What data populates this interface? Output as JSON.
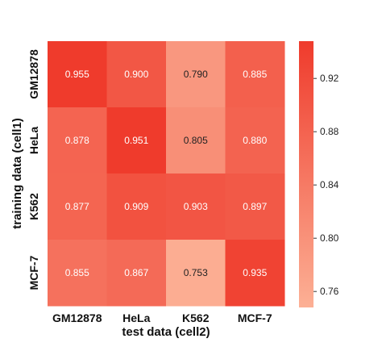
{
  "chart_data": {
    "type": "heatmap",
    "xlabel": "test data (cell2)",
    "ylabel": "training data (cell1)",
    "x_categories": [
      "GM12878",
      "HeLa",
      "K562",
      "MCF-7"
    ],
    "y_categories": [
      "GM12878",
      "HeLa",
      "K562",
      "MCF-7"
    ],
    "values": [
      [
        0.955,
        0.9,
        0.79,
        0.885
      ],
      [
        0.878,
        0.951,
        0.805,
        0.88
      ],
      [
        0.877,
        0.909,
        0.903,
        0.897
      ],
      [
        0.855,
        0.867,
        0.753,
        0.935
      ]
    ],
    "value_labels": [
      [
        "0.955",
        "0.900",
        "0.790",
        "0.885"
      ],
      [
        "0.878",
        "0.951",
        "0.805",
        "0.880"
      ],
      [
        "0.877",
        "0.909",
        "0.903",
        "0.897"
      ],
      [
        "0.855",
        "0.867",
        "0.753",
        "0.935"
      ]
    ],
    "colorbar": {
      "range": [
        0.748,
        0.948
      ],
      "ticks": [
        0.76,
        0.8,
        0.84,
        0.88,
        0.92
      ],
      "tick_labels": [
        "0.76",
        "0.80",
        "0.84",
        "0.88",
        "0.92"
      ],
      "color_low": "#fcb095",
      "color_high": "#ef3b2c"
    },
    "grid": false,
    "legend": "colorbar-right"
  }
}
